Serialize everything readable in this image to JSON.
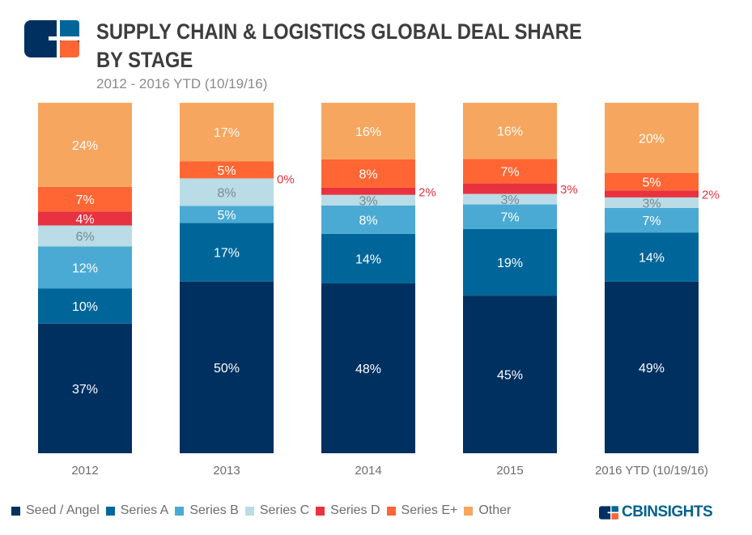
{
  "title": "SUPPLY CHAIN & LOGISTICS GLOBAL DEAL SHARE BY STAGE",
  "subtitle": "2012 - 2016 YTD (10/19/16)",
  "brand": "CBINSIGHTS",
  "chart_data": {
    "type": "bar",
    "stacked": true,
    "categories": [
      "2012",
      "2013",
      "2014",
      "2015",
      "2016 YTD (10/19/16)"
    ],
    "series": [
      {
        "name": "Seed / Angel",
        "color": "#003060",
        "values": [
          37,
          50,
          48,
          45,
          49
        ]
      },
      {
        "name": "Series A",
        "color": "#006699",
        "values": [
          10,
          17,
          14,
          19,
          14
        ]
      },
      {
        "name": "Series B",
        "color": "#4aaad3",
        "values": [
          12,
          5,
          8,
          7,
          7
        ]
      },
      {
        "name": "Series C",
        "color": "#b9dce6",
        "values": [
          6,
          8,
          3,
          3,
          3
        ]
      },
      {
        "name": "Series D",
        "color": "#e8323f",
        "values": [
          4,
          0,
          2,
          3,
          2
        ]
      },
      {
        "name": "Series E+",
        "color": "#ff6633",
        "values": [
          7,
          5,
          8,
          7,
          5
        ]
      },
      {
        "name": "Other",
        "color": "#f7a65f",
        "values": [
          24,
          17,
          16,
          16,
          20
        ]
      }
    ],
    "unit": "%",
    "legend": "bottom"
  }
}
